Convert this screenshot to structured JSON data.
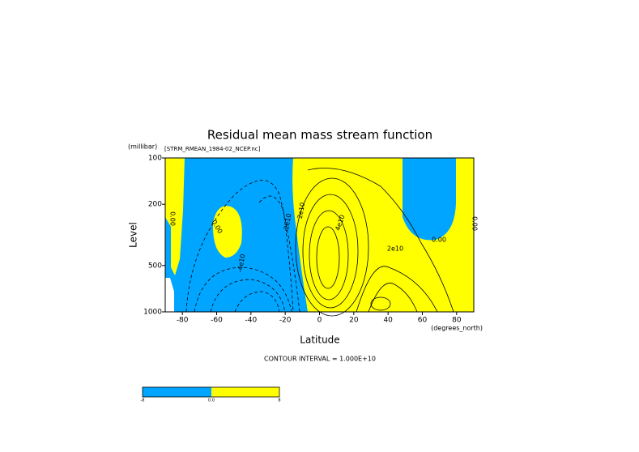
{
  "chart_data": {
    "type": "contour",
    "title": "Residual mean mass stream function",
    "subtitle": "[STRM_RMEAN_1984-02_NCEP.nc]",
    "y_unit": "(millibar)",
    "ylabel": "Level",
    "xlabel": "Latitude",
    "x_unit": "(degrees_north)",
    "xlim": [
      -90,
      90
    ],
    "xticks": [
      -80,
      -60,
      -40,
      -20,
      0,
      20,
      40,
      60,
      80
    ],
    "ylim": [
      1000,
      100
    ],
    "yticks": [
      100,
      200,
      500,
      1000
    ],
    "log_y": true,
    "note": "CONTOUR INTERVAL = 1.000E+10",
    "fill_colors": {
      "negative": "#00a5ff",
      "positive": "#ffff00"
    },
    "annotations": [
      "0.00",
      "0.00",
      "-4e10",
      "-2e10",
      "2e10",
      "4e10",
      "2e10",
      "0.00",
      "0.00"
    ],
    "colorbar": {
      "labels": [
        "-8",
        "0.0",
        "8"
      ]
    }
  }
}
